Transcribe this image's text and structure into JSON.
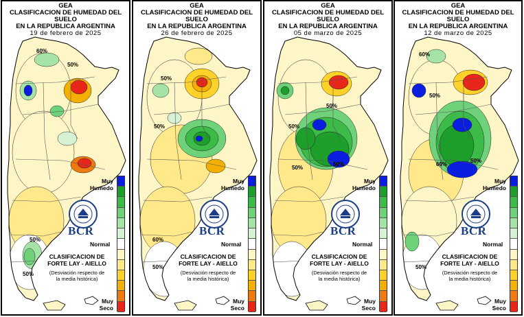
{
  "panels": [
    {
      "org": "GEA",
      "title1": "CLASIFICACION DE HUMEDAD DEL SUELO",
      "title2": "EN LA REPUBLICA ARGENTINA",
      "date": "19 de febrero de 2025",
      "contours": [
        "60%",
        "50%",
        "50%",
        "50%"
      ]
    },
    {
      "org": "GEA",
      "title1": "CLASIFICACION DE HUMEDAD DEL SUELO",
      "title2": "EN LA REPUBLICA ARGENTINA",
      "date": "26 de febrero de 2025",
      "contours": [
        "50%",
        "50%",
        "60%",
        "50%"
      ]
    },
    {
      "org": "GEA",
      "title1": "CLASIFICACION DE HUMEDAD DEL SUELO",
      "title2": "EN LA REPUBLICA ARGENTINA",
      "date": "05 de marzo de 2025",
      "contours": [
        "50%",
        "50%",
        "50%",
        "50%"
      ]
    },
    {
      "org": "GEA",
      "title1": "CLASIFICACION DE HUMEDAD DEL SUELO",
      "title2": "EN LA REPUBLICA ARGENTINA",
      "date": "12 de marzo de 2025",
      "contours": [
        "60%",
        "50%",
        "60%",
        "50%",
        "50%"
      ]
    }
  ],
  "legend": {
    "muy_humedo": [
      "Muy",
      "Humedo"
    ],
    "normal": "Normal",
    "muy_seco": [
      "Muy",
      "Seco"
    ],
    "colors": [
      "#0a1ee0",
      "#1e9e2a",
      "#3dbb48",
      "#6fd27a",
      "#a6e3a6",
      "#d6f1d3",
      "#ffffff",
      "#fff6c8",
      "#ffe98a",
      "#ffd22a",
      "#f4b000",
      "#ee7a10",
      "#e8261a"
    ]
  },
  "footer": {
    "logo_text": "BCR",
    "clasif_line1": "CLASIFICACION DE",
    "clasif_line2": "FORTE LAY - AIELLO",
    "desc_line1": "(Desviación respecto de",
    "desc_line2": "la media histórica)"
  },
  "colors": {
    "border": "#000000",
    "brand": "#1a3f86"
  }
}
